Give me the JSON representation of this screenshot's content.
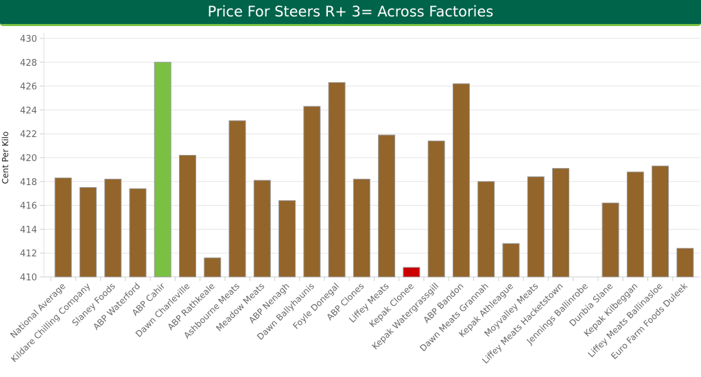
{
  "chart_data": {
    "type": "bar",
    "title": "Price For Steers R+ 3= Across Factories",
    "xlabel": "",
    "ylabel": "Cent Per Kilo",
    "ylim": [
      410,
      430
    ],
    "yticks": [
      410,
      412,
      414,
      416,
      418,
      420,
      422,
      424,
      426,
      428,
      430
    ],
    "grid": true,
    "categories": [
      "National Average",
      "Kildare Chilling Company",
      "Slaney Foods",
      "ABP Waterford",
      "ABP Cahir",
      "Dawn Charleville",
      "ABP Rathkeale",
      "Ashbourne Meats",
      "Meadow Meats",
      "ABP Nenagh",
      "Dawn Ballyhaunis",
      "Foyle Donegal",
      "ABP Clones",
      "Liffey Meats",
      "Kepak Clonee",
      "Kepak Watergrassgill",
      "ABP Bandon",
      "Dawn Meats Grannah",
      "Kepak Athleague",
      "Moyvalley Meats",
      "Liffey Meats Hacketstown",
      "Jennings Ballinrobe",
      "Dunbia Slane",
      "Kepak Kilbeggan",
      "Liffey Meats Ballinasloe",
      "Euro Farm Foods Duleek"
    ],
    "values": [
      418.3,
      417.5,
      418.2,
      417.4,
      428.0,
      420.2,
      411.6,
      423.1,
      418.1,
      416.4,
      424.3,
      426.3,
      418.2,
      421.9,
      410.8,
      421.4,
      426.2,
      418.0,
      412.8,
      418.4,
      419.1,
      null,
      416.2,
      418.8,
      419.3,
      412.4
    ],
    "colors": {
      "default": "#93652a",
      "highest": "#7ac143",
      "lowest": "#cc0000"
    },
    "highlight": {
      "highest": "ABP Cahir",
      "lowest": "Kepak Clonee"
    }
  }
}
